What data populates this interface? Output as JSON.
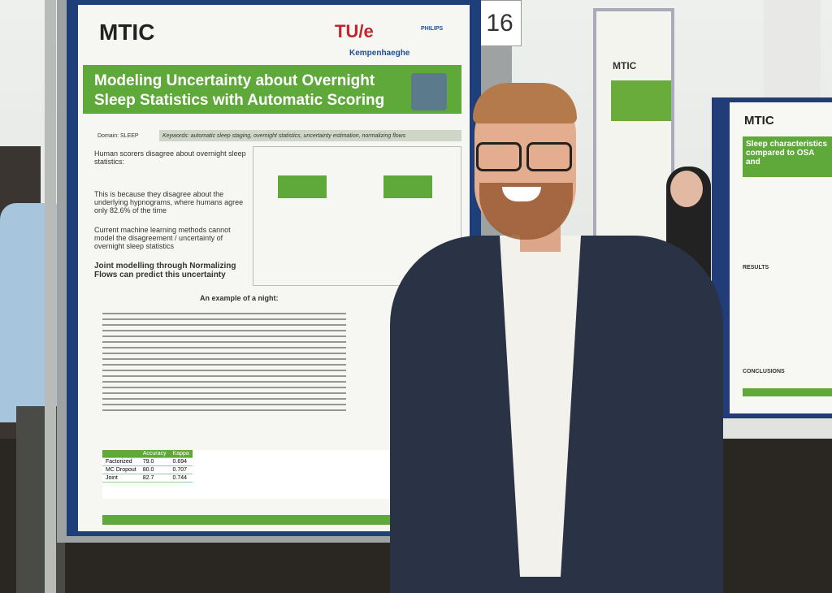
{
  "board_number": "16",
  "poster": {
    "logo": "MTIC",
    "partner_logos": [
      "TU/e",
      "PHILIPS",
      "Kempenhaeghe"
    ],
    "title": "Modeling Uncertainty about Overnight Sleep Statistics with Automatic Scoring",
    "domain": "Domain: SLEEP",
    "keywords": "Keywords: automatic sleep staging, overnight statistics, uncertainty estimation, normalizing flows",
    "bullets": [
      "Human scorers disagree about overnight sleep statistics:",
      "This is because they disagree about the underlying hypnograms, where humans agree only 82.6% of the time",
      "Current machine learning methods cannot model the disagreement / uncertainty of overnight sleep statistics",
      "Joint modelling through Normalizing Flows can predict this uncertainty"
    ],
    "section_title": "An example of a night:",
    "table": {
      "header": [
        "",
        "Accuracy",
        "Kappa"
      ],
      "rows": [
        [
          "Factorized",
          "79.0",
          "0.694"
        ],
        [
          "MC Dropout",
          "80.0",
          "0.707"
        ],
        [
          "Joint",
          "82.7",
          "0.744"
        ]
      ]
    }
  },
  "right_poster": {
    "logo": "MTIC",
    "title": "Sleep characteristics compared to OSA and",
    "sections": [
      "RESULTS",
      "CONCLUSIONS"
    ]
  },
  "middle_poster": {
    "logo": "MTIC"
  }
}
